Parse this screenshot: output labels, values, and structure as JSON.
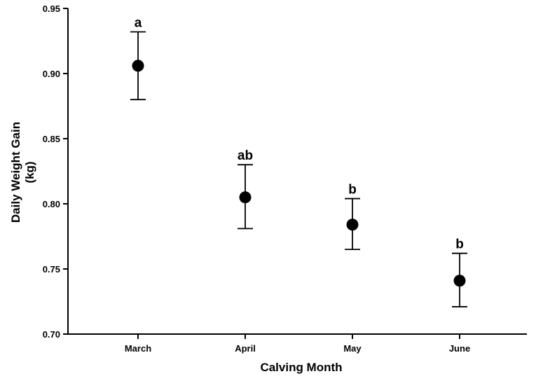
{
  "chart_data": {
    "type": "scatter",
    "categories": [
      "March",
      "April",
      "May",
      "June"
    ],
    "values": [
      0.906,
      0.805,
      0.784,
      0.741
    ],
    "err_low": [
      0.88,
      0.781,
      0.765,
      0.721
    ],
    "err_high": [
      0.932,
      0.83,
      0.804,
      0.762
    ],
    "annotations": [
      "a",
      "ab",
      "b",
      "b"
    ],
    "xlabel": "Calving Month",
    "ylabel_lines": [
      "Daily Weight Gain",
      "(kg)"
    ],
    "ylim": [
      0.7,
      0.95
    ],
    "yticks": [
      "0.70",
      "0.75",
      "0.80",
      "0.85",
      "0.90",
      "0.95"
    ],
    "grid": false,
    "marker_color": "#000000"
  }
}
